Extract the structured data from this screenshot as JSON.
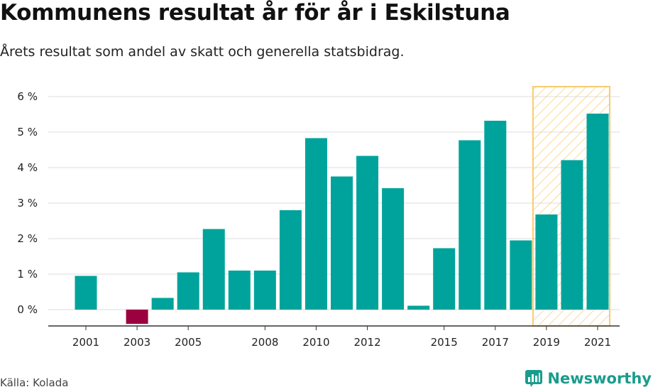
{
  "header": {
    "title": "Kommunens resultat år för år i Eskilstuna",
    "subtitle": "Årets resultat som andel av skatt och generella statsbidrag."
  },
  "footer": {
    "source": "Källa: Kolada",
    "brand": "Newsworthy"
  },
  "colors": {
    "positive": "#00a39b",
    "negative": "#9b0041",
    "highlight_stroke": "#f6cc72",
    "grid": "#dddddd",
    "brand": "#1a9c8c"
  },
  "chart_data": {
    "type": "bar",
    "categories": [
      2001,
      2002,
      2003,
      2004,
      2005,
      2006,
      2007,
      2008,
      2009,
      2010,
      2011,
      2012,
      2013,
      2014,
      2015,
      2016,
      2017,
      2018,
      2019,
      2020,
      2021
    ],
    "values": [
      0.95,
      null,
      -0.4,
      0.33,
      1.05,
      2.27,
      1.1,
      1.1,
      2.8,
      4.83,
      3.75,
      4.33,
      3.42,
      0.11,
      1.73,
      4.77,
      5.32,
      1.95,
      2.68,
      4.21,
      5.52
    ],
    "x_tick_labels": [
      "2001",
      "2003",
      "2005",
      "2008",
      "2010",
      "2012",
      "2015",
      "2017",
      "2019",
      "2021"
    ],
    "y_ticks": [
      0,
      1,
      2,
      3,
      4,
      5,
      6
    ],
    "y_tick_labels": [
      "0 %",
      "1 %",
      "2 %",
      "3 %",
      "4 %",
      "5 %",
      "6 %"
    ],
    "ylim": [
      -0.5,
      6.3
    ],
    "highlight_range": [
      2019,
      2021
    ],
    "grid": true,
    "xlabel": "",
    "ylabel": ""
  }
}
